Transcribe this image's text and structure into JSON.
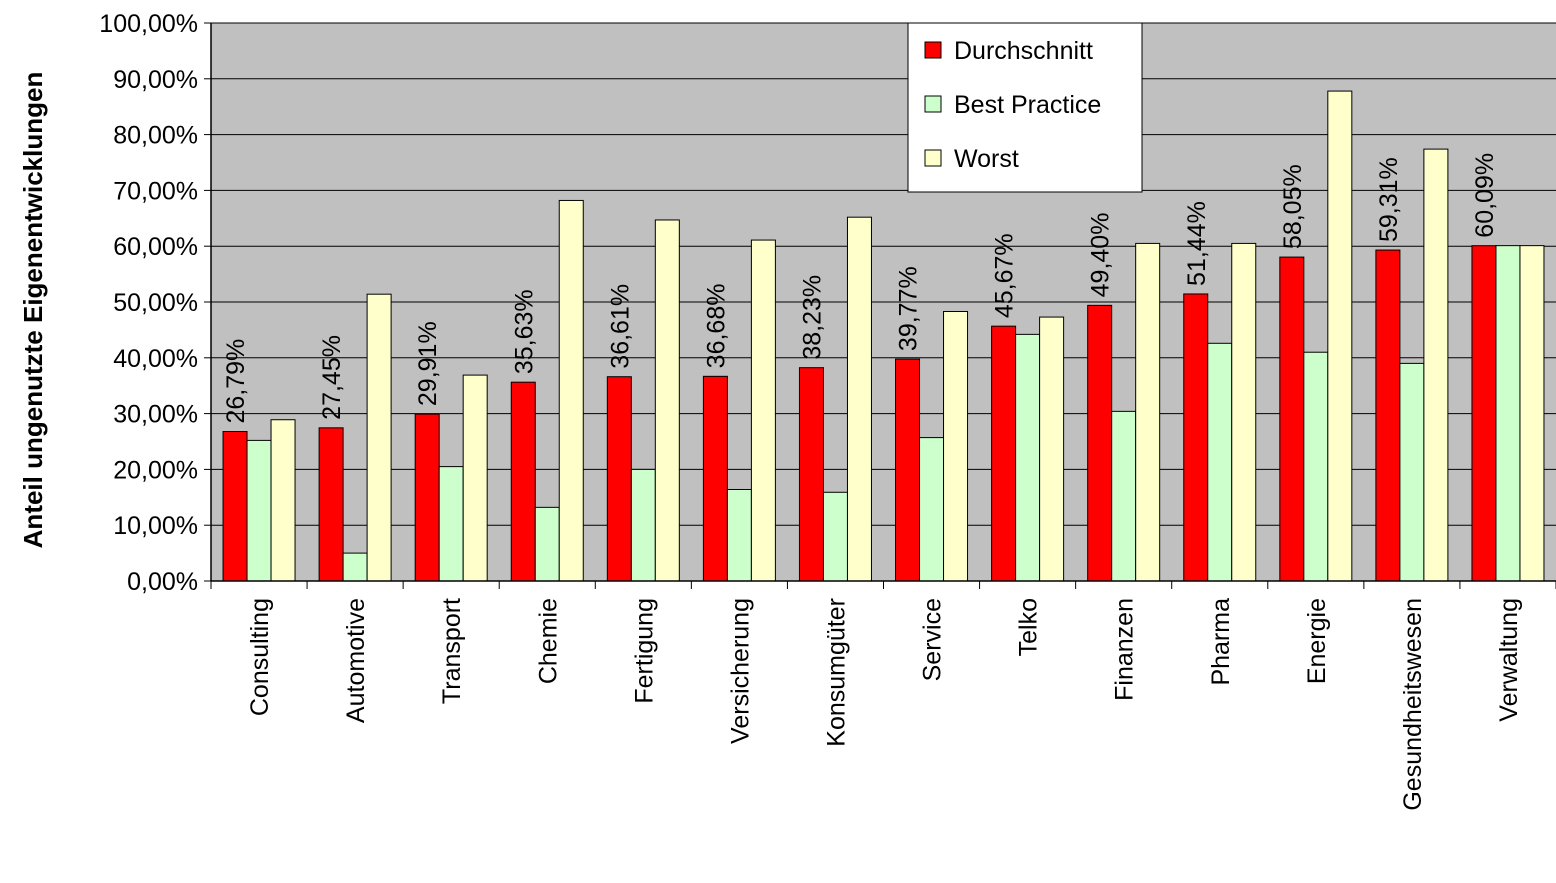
{
  "chart_data": {
    "type": "bar",
    "title": "",
    "xlabel": "",
    "ylabel": "Anteil ungenutzte Eigenentwicklungen",
    "ylim": [
      0,
      100
    ],
    "ytick_labels": [
      "0,00%",
      "10,00%",
      "20,00%",
      "30,00%",
      "40,00%",
      "50,00%",
      "60,00%",
      "70,00%",
      "80,00%",
      "90,00%",
      "100,00%"
    ],
    "ytick_values": [
      0,
      10,
      20,
      30,
      40,
      50,
      60,
      70,
      80,
      90,
      100
    ],
    "grid": true,
    "legend_position": "top-right",
    "categories": [
      "Consulting",
      "Automotive",
      "Transport",
      "Chemie",
      "Fertigung",
      "Versicherung",
      "Konsumgüter",
      "Service",
      "Telko",
      "Finanzen",
      "Pharma",
      "Energie",
      "Gesundheitswesen",
      "Verwaltung"
    ],
    "series": [
      {
        "name": "Durchschnitt",
        "color": "#ff0000",
        "values": [
          26.79,
          27.45,
          29.91,
          35.63,
          36.61,
          36.68,
          38.23,
          39.77,
          45.67,
          49.4,
          51.44,
          58.05,
          59.31,
          60.09
        ],
        "data_labels": [
          "26,79%",
          "27,45%",
          "29,91%",
          "35,63%",
          "36,61%",
          "36,68%",
          "38,23%",
          "39,77%",
          "45,67%",
          "49,40%",
          "51,44%",
          "58,05%",
          "59,31%",
          "60,09%"
        ]
      },
      {
        "name": "Best Practice",
        "color": "#ccffcc",
        "values": [
          25.2,
          5.0,
          20.5,
          13.2,
          20.0,
          16.4,
          15.9,
          25.7,
          44.2,
          30.4,
          42.6,
          41.0,
          39.0,
          60.1
        ]
      },
      {
        "name": "Worst",
        "color": "#ffffcc",
        "values": [
          28.9,
          51.4,
          36.9,
          68.2,
          64.7,
          61.1,
          65.2,
          48.3,
          47.3,
          60.5,
          60.5,
          87.8,
          77.4,
          60.1
        ]
      }
    ],
    "colors": {
      "plot_background": "#c0c0c0",
      "grid": "#000000",
      "bar_outline": "#000000"
    }
  }
}
